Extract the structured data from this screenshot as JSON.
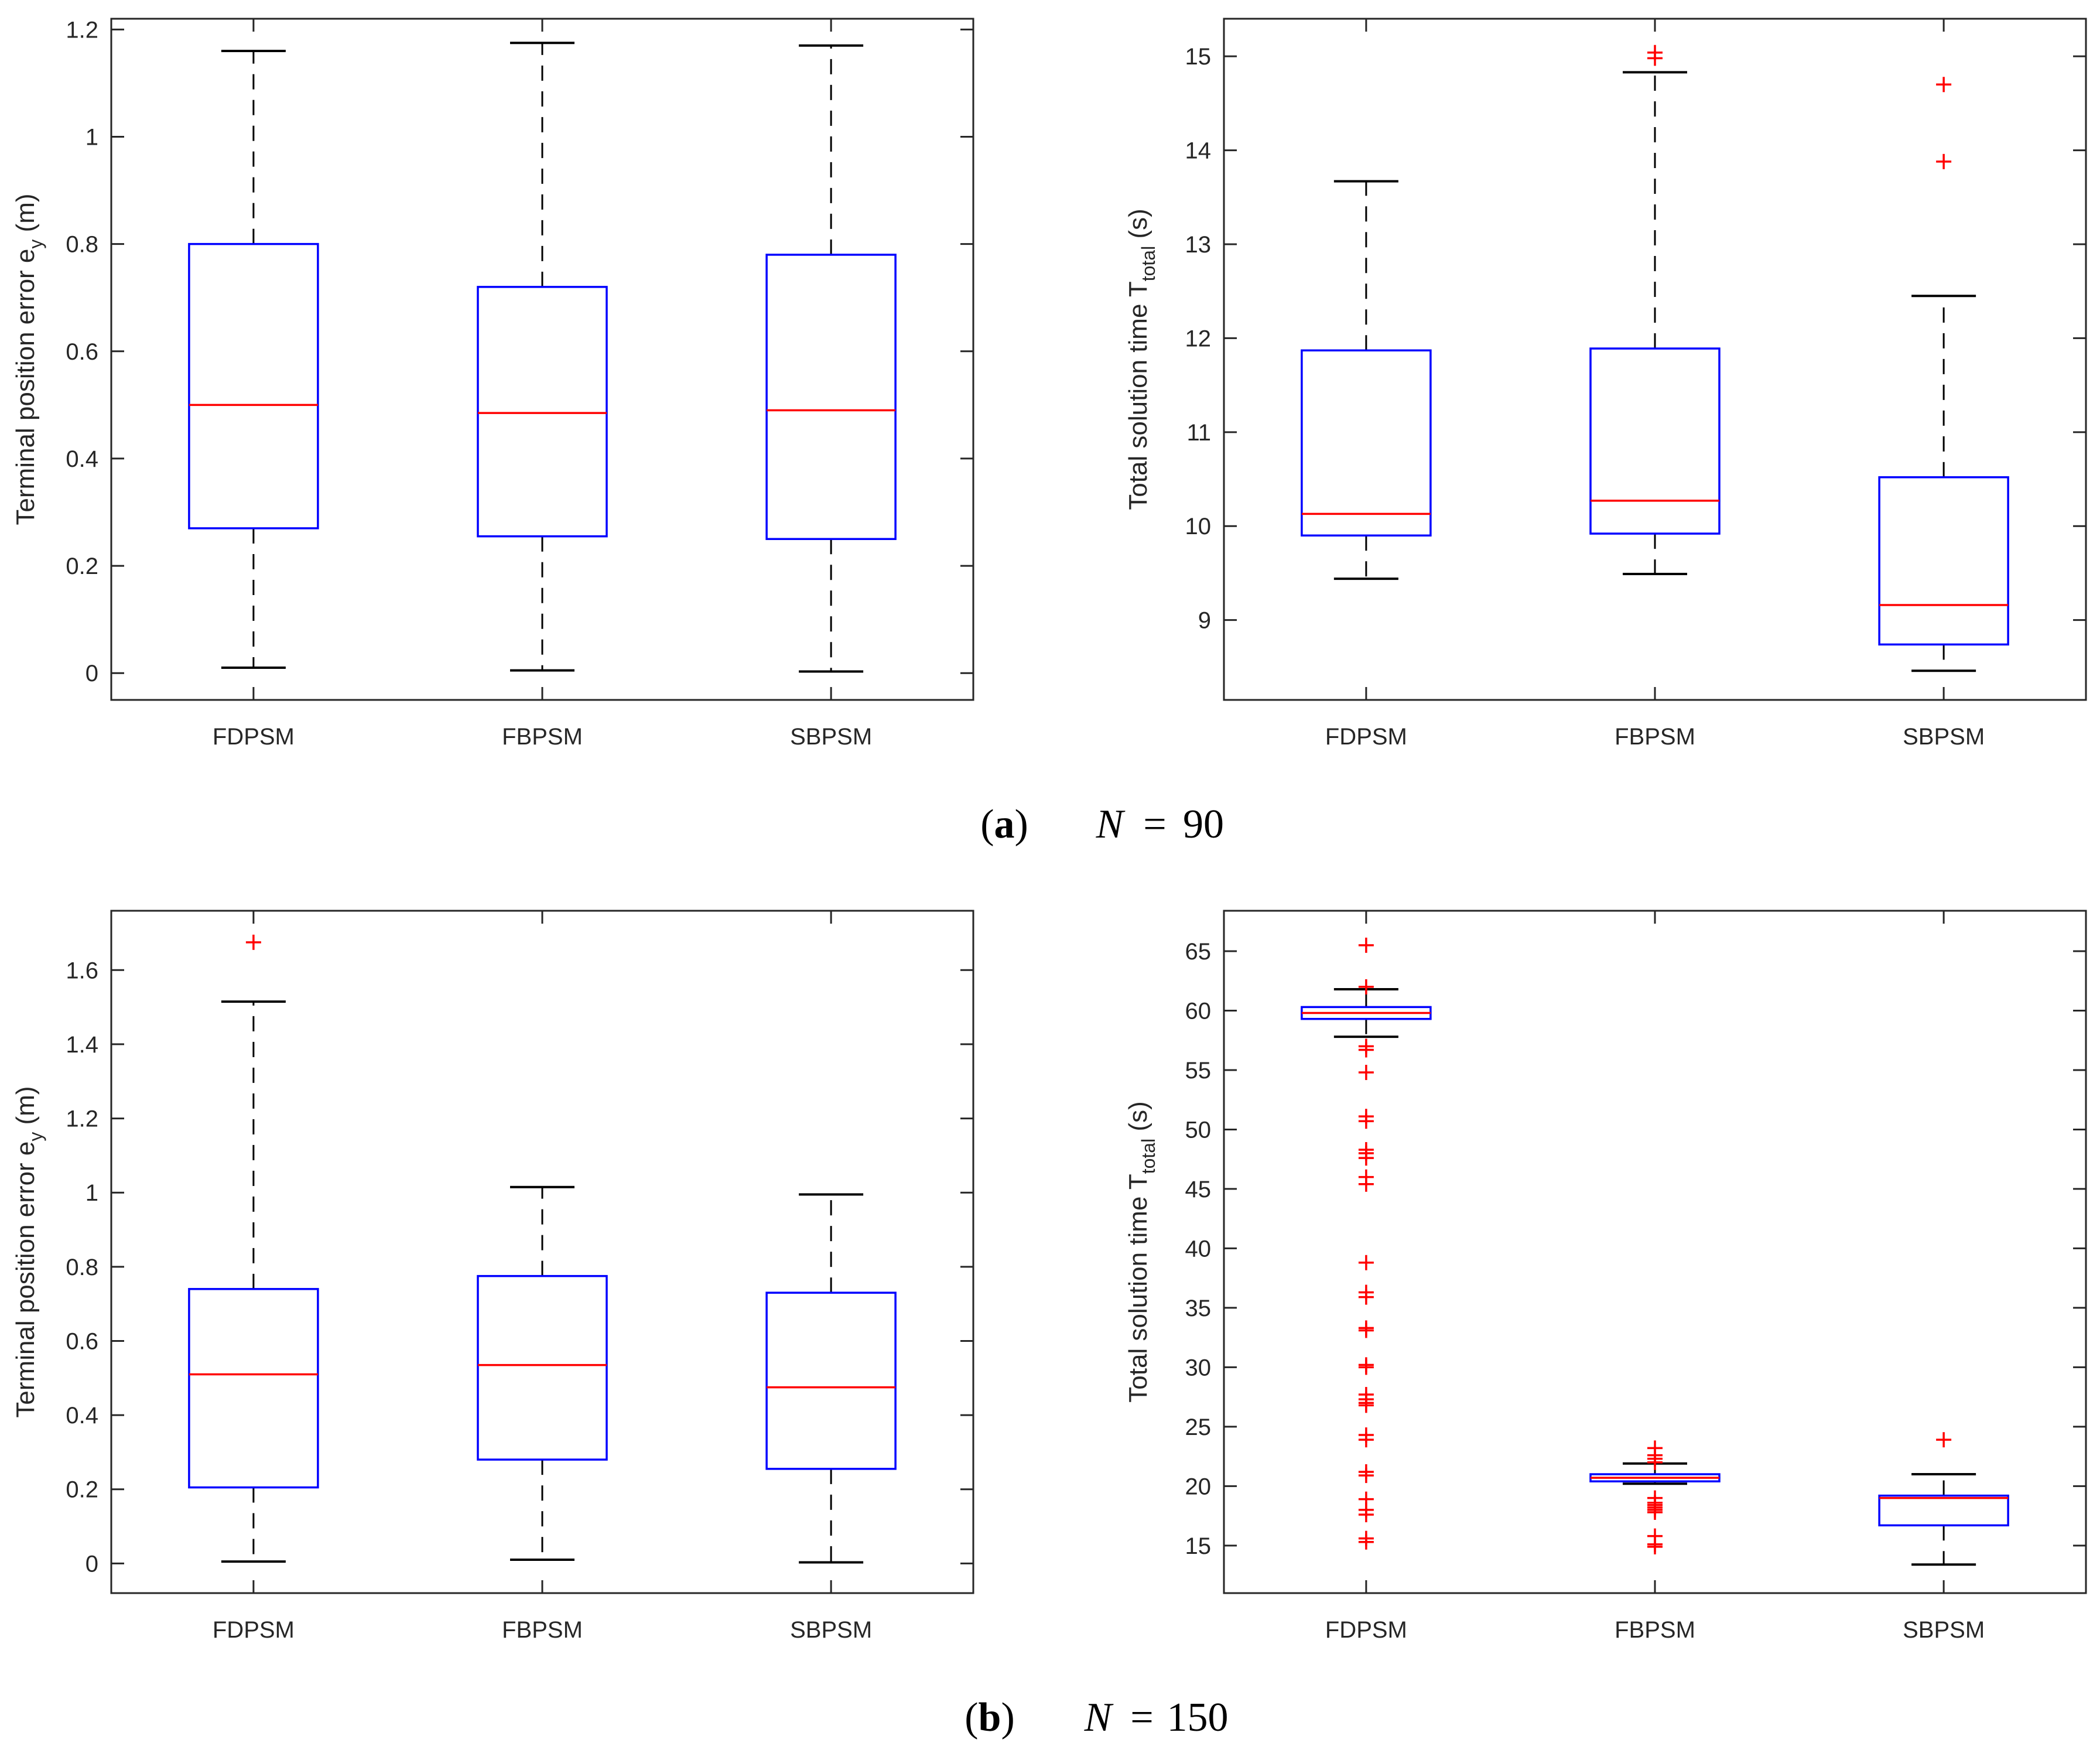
{
  "colors": {
    "box": "#0000ff",
    "median": "#ff0000",
    "whisker": "#000000",
    "outlier": "#ff0000",
    "axis": "#262626"
  },
  "captions": [
    {
      "letter": "a",
      "var": "N",
      "eq": "=",
      "value": "90"
    },
    {
      "letter": "b",
      "var": "N",
      "eq": "=",
      "value": "150"
    }
  ],
  "chart_data": [
    {
      "type": "box",
      "panel": "a-left",
      "ylabel": {
        "main": "Terminal position error e",
        "sub": "y",
        "unit": " (m)"
      },
      "ylim": [
        -0.05,
        1.22
      ],
      "yticks": [
        0,
        0.2,
        0.4,
        0.6,
        0.8,
        1,
        1.2
      ],
      "yticklabels": [
        "0",
        "0.2",
        "0.4",
        "0.6",
        "0.8",
        "1",
        "1.2"
      ],
      "categories": [
        "FDPSM",
        "FBPSM",
        "SBPSM"
      ],
      "boxes": [
        {
          "whisker_low": 0.01,
          "q1": 0.27,
          "median": 0.5,
          "q3": 0.8,
          "whisker_high": 1.16,
          "outliers": []
        },
        {
          "whisker_low": 0.005,
          "q1": 0.255,
          "median": 0.485,
          "q3": 0.72,
          "whisker_high": 1.175,
          "outliers": []
        },
        {
          "whisker_low": 0.003,
          "q1": 0.25,
          "median": 0.49,
          "q3": 0.78,
          "whisker_high": 1.17,
          "outliers": []
        }
      ]
    },
    {
      "type": "box",
      "panel": "a-right",
      "ylabel": {
        "main": "Total solution time T",
        "sub": "total",
        "unit": " (s)"
      },
      "ylim": [
        8.15,
        15.4
      ],
      "yticks": [
        9,
        10,
        11,
        12,
        13,
        14,
        15
      ],
      "yticklabels": [
        "9",
        "10",
        "11",
        "12",
        "13",
        "14",
        "15"
      ],
      "categories": [
        "FDPSM",
        "FBPSM",
        "SBPSM"
      ],
      "boxes": [
        {
          "whisker_low": 9.44,
          "q1": 9.9,
          "median": 10.13,
          "q3": 11.87,
          "whisker_high": 13.67,
          "outliers": []
        },
        {
          "whisker_low": 9.49,
          "q1": 9.92,
          "median": 10.27,
          "q3": 11.89,
          "whisker_high": 14.83,
          "outliers": [
            14.98,
            15.04
          ]
        },
        {
          "whisker_low": 8.46,
          "q1": 8.74,
          "median": 9.16,
          "q3": 10.52,
          "whisker_high": 12.45,
          "outliers": [
            13.88,
            14.7
          ]
        }
      ]
    },
    {
      "type": "box",
      "panel": "b-left",
      "ylabel": {
        "main": "Terminal position error e",
        "sub": "y",
        "unit": " (m)"
      },
      "ylim": [
        -0.08,
        1.76
      ],
      "yticks": [
        0,
        0.2,
        0.4,
        0.6,
        0.8,
        1,
        1.2,
        1.4,
        1.6
      ],
      "yticklabels": [
        "0",
        "0.2",
        "0.4",
        "0.6",
        "0.8",
        "1",
        "1.2",
        "1.4",
        "1.6"
      ],
      "categories": [
        "FDPSM",
        "FBPSM",
        "SBPSM"
      ],
      "boxes": [
        {
          "whisker_low": 0.005,
          "q1": 0.205,
          "median": 0.51,
          "q3": 0.74,
          "whisker_high": 1.515,
          "outliers": [
            1.675
          ]
        },
        {
          "whisker_low": 0.01,
          "q1": 0.28,
          "median": 0.535,
          "q3": 0.775,
          "whisker_high": 1.015,
          "outliers": []
        },
        {
          "whisker_low": 0.003,
          "q1": 0.255,
          "median": 0.475,
          "q3": 0.73,
          "whisker_high": 0.995,
          "outliers": []
        }
      ]
    },
    {
      "type": "box",
      "panel": "b-right",
      "ylabel": {
        "main": "Total solution time T",
        "sub": "total",
        "unit": " (s)"
      },
      "ylim": [
        11.0,
        68.4
      ],
      "yticks": [
        15,
        20,
        25,
        30,
        35,
        40,
        45,
        50,
        55,
        60,
        65
      ],
      "yticklabels": [
        "15",
        "20",
        "25",
        "30",
        "35",
        "40",
        "45",
        "50",
        "55",
        "60",
        "65"
      ],
      "categories": [
        "FDPSM",
        "FBPSM",
        "SBPSM"
      ],
      "boxes": [
        {
          "whisker_low": 57.8,
          "q1": 59.3,
          "median": 59.8,
          "q3": 60.3,
          "whisker_high": 61.8,
          "outliers": [
            65.5,
            62.0,
            57.0,
            56.7,
            54.8,
            51.1,
            50.7,
            48.3,
            48.0,
            47.6,
            46.0,
            45.4,
            38.8,
            36.3,
            35.9,
            33.3,
            33.1,
            30.2,
            30.0,
            27.7,
            27.3,
            27.0,
            26.8,
            24.3,
            23.9,
            21.2,
            20.9,
            18.9,
            18.0,
            17.6,
            15.6,
            15.3
          ]
        },
        {
          "whisker_low": 20.2,
          "q1": 20.4,
          "median": 20.7,
          "q3": 21.0,
          "whisker_high": 21.9,
          "outliers": [
            23.2,
            22.6,
            22.3,
            22.0,
            19.0,
            18.6,
            18.4,
            18.2,
            18.0,
            17.8,
            15.8,
            15.1,
            14.9
          ]
        },
        {
          "whisker_low": 13.4,
          "q1": 16.7,
          "median": 19.0,
          "q3": 19.2,
          "whisker_high": 21.0,
          "outliers": [
            23.9
          ]
        }
      ]
    }
  ]
}
